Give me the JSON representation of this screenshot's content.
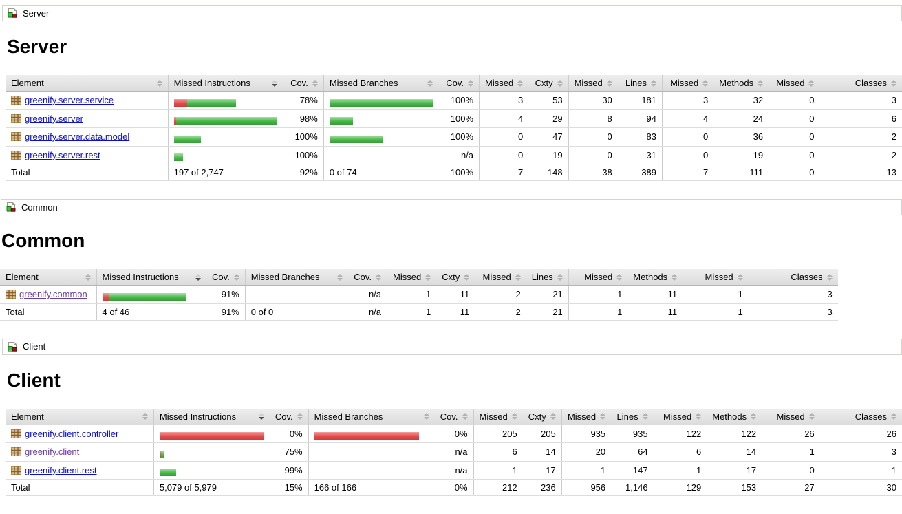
{
  "colors": {
    "bar_green": "#49b749",
    "bar_red": "#e24b4b",
    "link": "#0d0dcd",
    "link_visited": "#6b3fa0",
    "header_bg": "#e3e3e3"
  },
  "headers": [
    "Element",
    "Missed Instructions",
    "Cov.",
    "Missed Branches",
    "Cov.",
    "Missed",
    "Cxty",
    "Missed",
    "Lines",
    "Missed",
    "Methods",
    "Missed",
    "Classes"
  ],
  "sorted_column": "Missed Instructions",
  "sections": [
    {
      "breadcrumb": "Server",
      "title": "Server",
      "rows": [
        {
          "name": "greenify.server.service",
          "ins_bar": {
            "red": 19,
            "green": 71
          },
          "ins_cov": "78%",
          "br_bar": {
            "green": 150
          },
          "br_cov": "100%",
          "nums": [
            "3",
            "53",
            "30",
            "181",
            "3",
            "32",
            "0",
            "3"
          ]
        },
        {
          "name": "greenify.server",
          "ins_bar": {
            "red": 3,
            "green": 147
          },
          "ins_cov": "98%",
          "br_bar": {
            "green": 34
          },
          "br_cov": "100%",
          "nums": [
            "4",
            "29",
            "8",
            "94",
            "4",
            "24",
            "0",
            "6"
          ]
        },
        {
          "name": "greenify.server.data.model",
          "ins_bar": {
            "green": 39
          },
          "ins_cov": "100%",
          "br_bar": {
            "green": 77
          },
          "br_cov": "100%",
          "nums": [
            "0",
            "47",
            "0",
            "83",
            "0",
            "36",
            "0",
            "2"
          ]
        },
        {
          "name": "greenify.server.rest",
          "ins_bar": {
            "green": 13
          },
          "ins_cov": "100%",
          "br_bar": {},
          "br_cov": "n/a",
          "nums": [
            "0",
            "19",
            "0",
            "31",
            "0",
            "19",
            "0",
            "2"
          ]
        }
      ],
      "total": {
        "label": "Total",
        "ins": "197 of 2,747",
        "ins_cov": "92%",
        "br": "0 of 74",
        "br_cov": "100%",
        "nums": [
          "7",
          "148",
          "38",
          "389",
          "7",
          "111",
          "0",
          "13"
        ]
      }
    },
    {
      "breadcrumb": "Common",
      "title": "Common",
      "rows": [
        {
          "name": "greenify.common",
          "ins_bar": {
            "red": 10,
            "green": 112
          },
          "ins_cov": "91%",
          "br_bar": {},
          "br_cov": "n/a",
          "nums": [
            "1",
            "11",
            "2",
            "21",
            "1",
            "11",
            "1",
            "3"
          ]
        }
      ],
      "total": {
        "label": "Total",
        "ins": "4 of 46",
        "ins_cov": "91%",
        "br": "0 of 0",
        "br_cov": "n/a",
        "nums": [
          "1",
          "11",
          "2",
          "21",
          "1",
          "11",
          "1",
          "3"
        ]
      }
    },
    {
      "breadcrumb": "Client",
      "title": "Client",
      "rows": [
        {
          "name": "greenify.client.controller",
          "ins_bar": {
            "red": 152
          },
          "ins_cov": "0%",
          "br_bar": {
            "red": 152
          },
          "br_cov": "0%",
          "nums": [
            "205",
            "205",
            "935",
            "935",
            "122",
            "122",
            "26",
            "26"
          ]
        },
        {
          "name": "greenify.client",
          "ins_bar": {
            "red": 2,
            "green": 5
          },
          "ins_cov": "75%",
          "br_bar": {},
          "br_cov": "n/a",
          "nums": [
            "6",
            "14",
            "20",
            "64",
            "6",
            "14",
            "1",
            "3"
          ]
        },
        {
          "name": "greenify.client.rest",
          "ins_bar": {
            "green": 24
          },
          "ins_cov": "99%",
          "br_bar": {},
          "br_cov": "n/a",
          "nums": [
            "1",
            "17",
            "1",
            "147",
            "1",
            "17",
            "0",
            "1"
          ]
        }
      ],
      "total": {
        "label": "Total",
        "ins": "5,079 of 5,979",
        "ins_cov": "15%",
        "br": "166 of 166",
        "br_cov": "0%",
        "nums": [
          "212",
          "236",
          "956",
          "1,146",
          "129",
          "153",
          "27",
          "30"
        ]
      }
    }
  ]
}
